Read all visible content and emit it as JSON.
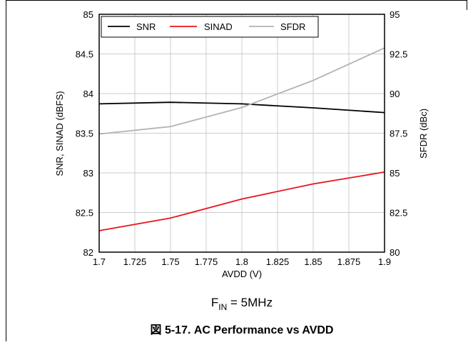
{
  "chart_data": {
    "type": "line",
    "x": [
      1.7,
      1.75,
      1.8,
      1.85,
      1.9
    ],
    "xlabel": "AVDD (V)",
    "xlim": [
      1.7,
      1.9
    ],
    "xticks": [
      "1.7",
      "1.725",
      "1.75",
      "1.775",
      "1.8",
      "1.825",
      "1.85",
      "1.875",
      "1.9"
    ],
    "ylabel_left": "SNR, SINAD (dBFS)",
    "ylim_left": [
      82,
      85
    ],
    "yticks_left": [
      "82",
      "82.5",
      "83",
      "83.5",
      "84",
      "84.5",
      "85"
    ],
    "ylabel_right": "SFDR (dBc)",
    "ylim_right": [
      80,
      95
    ],
    "yticks_right": [
      "80",
      "82.5",
      "85",
      "87.5",
      "90",
      "92.5",
      "95"
    ],
    "grid": true,
    "legend_position": "top-left",
    "series": [
      {
        "name": "SNR",
        "axis": "left",
        "color": "#000000",
        "values": [
          83.87,
          83.89,
          83.87,
          83.82,
          83.76
        ]
      },
      {
        "name": "SINAD",
        "axis": "left",
        "color": "#e8141c",
        "values": [
          82.27,
          82.43,
          82.67,
          82.86,
          83.01
        ]
      },
      {
        "name": "SFDR",
        "axis": "right",
        "color": "#b3b3b3",
        "values": [
          87.45,
          87.92,
          89.12,
          90.83,
          92.88
        ]
      }
    ],
    "condition": {
      "base": "F",
      "sub": "IN",
      "rest": " = 5MHz"
    },
    "caption": "図 5-17. AC Performance vs AVDD"
  }
}
